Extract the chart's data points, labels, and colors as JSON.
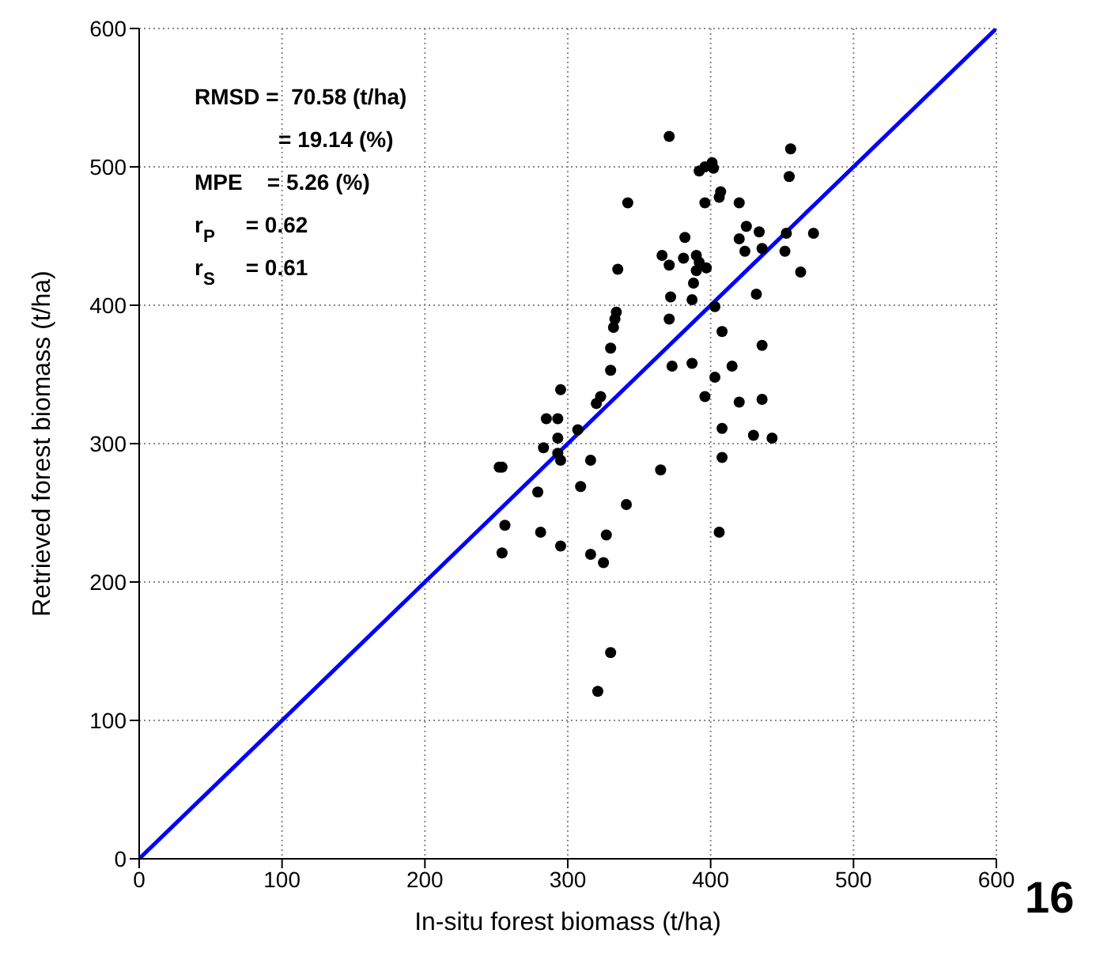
{
  "chart_data": {
    "type": "scatter",
    "xlabel": "In-situ forest biomass (t/ha)",
    "ylabel": "Retrieved forest biomass (t/ha)",
    "xlim": [
      0,
      600
    ],
    "ylim": [
      0,
      600
    ],
    "xticks": [
      0,
      100,
      200,
      300,
      400,
      500,
      600
    ],
    "yticks": [
      0,
      100,
      200,
      300,
      400,
      500,
      600
    ],
    "grid": true,
    "marker": "circle",
    "annotations": [
      "RMSD =  70.58 (t/ha)",
      "= 19.14 (%)",
      "MPE    = 5.26 (%)",
      "r$_{P}$     = 0.62",
      "r$_{S}$     = 0.61",
      "16"
    ],
    "series": [
      {
        "color": "#000000",
        "x": [
          371,
          392,
          396,
          401,
          402,
          456,
          455,
          342,
          396,
          407,
          406,
          420,
          425,
          434,
          420,
          424,
          436,
          453,
          452,
          382,
          366,
          371,
          381,
          390,
          392,
          397,
          390,
          388,
          335,
          372,
          387,
          432,
          403,
          334,
          333,
          332,
          408,
          330,
          436,
          371,
          330,
          373,
          387,
          415,
          403,
          396,
          420,
          436,
          323,
          320,
          295,
          285,
          293,
          293,
          283,
          293,
          295,
          252,
          254,
          279,
          256,
          254,
          281,
          295,
          309,
          307,
          408,
          430,
          443,
          316,
          408,
          365,
          341,
          327,
          406,
          316,
          325,
          330,
          321,
          472,
          463
        ],
        "values": [
          522,
          497,
          500,
          503,
          499,
          513,
          493,
          474,
          474,
          482,
          478,
          474,
          457,
          453,
          448,
          439,
          441,
          452,
          439,
          449,
          436,
          429,
          434,
          436,
          431,
          427,
          425,
          416,
          426,
          406,
          404,
          408,
          399,
          395,
          390,
          384,
          381,
          369,
          371,
          390,
          353,
          356,
          358,
          356,
          348,
          334,
          330,
          332,
          334,
          329,
          339,
          318,
          318,
          304,
          297,
          293,
          288,
          283,
          283,
          265,
          241,
          221,
          236,
          226,
          269,
          310,
          311,
          306,
          304,
          288,
          290,
          281,
          256,
          234,
          236,
          220,
          214,
          149,
          121,
          452,
          424
        ]
      },
      {
        "type": "line",
        "color": "#0000ff",
        "marker": "none",
        "line_style": "solid",
        "x": [
          0,
          600
        ],
        "values": [
          0,
          600
        ]
      }
    ]
  }
}
